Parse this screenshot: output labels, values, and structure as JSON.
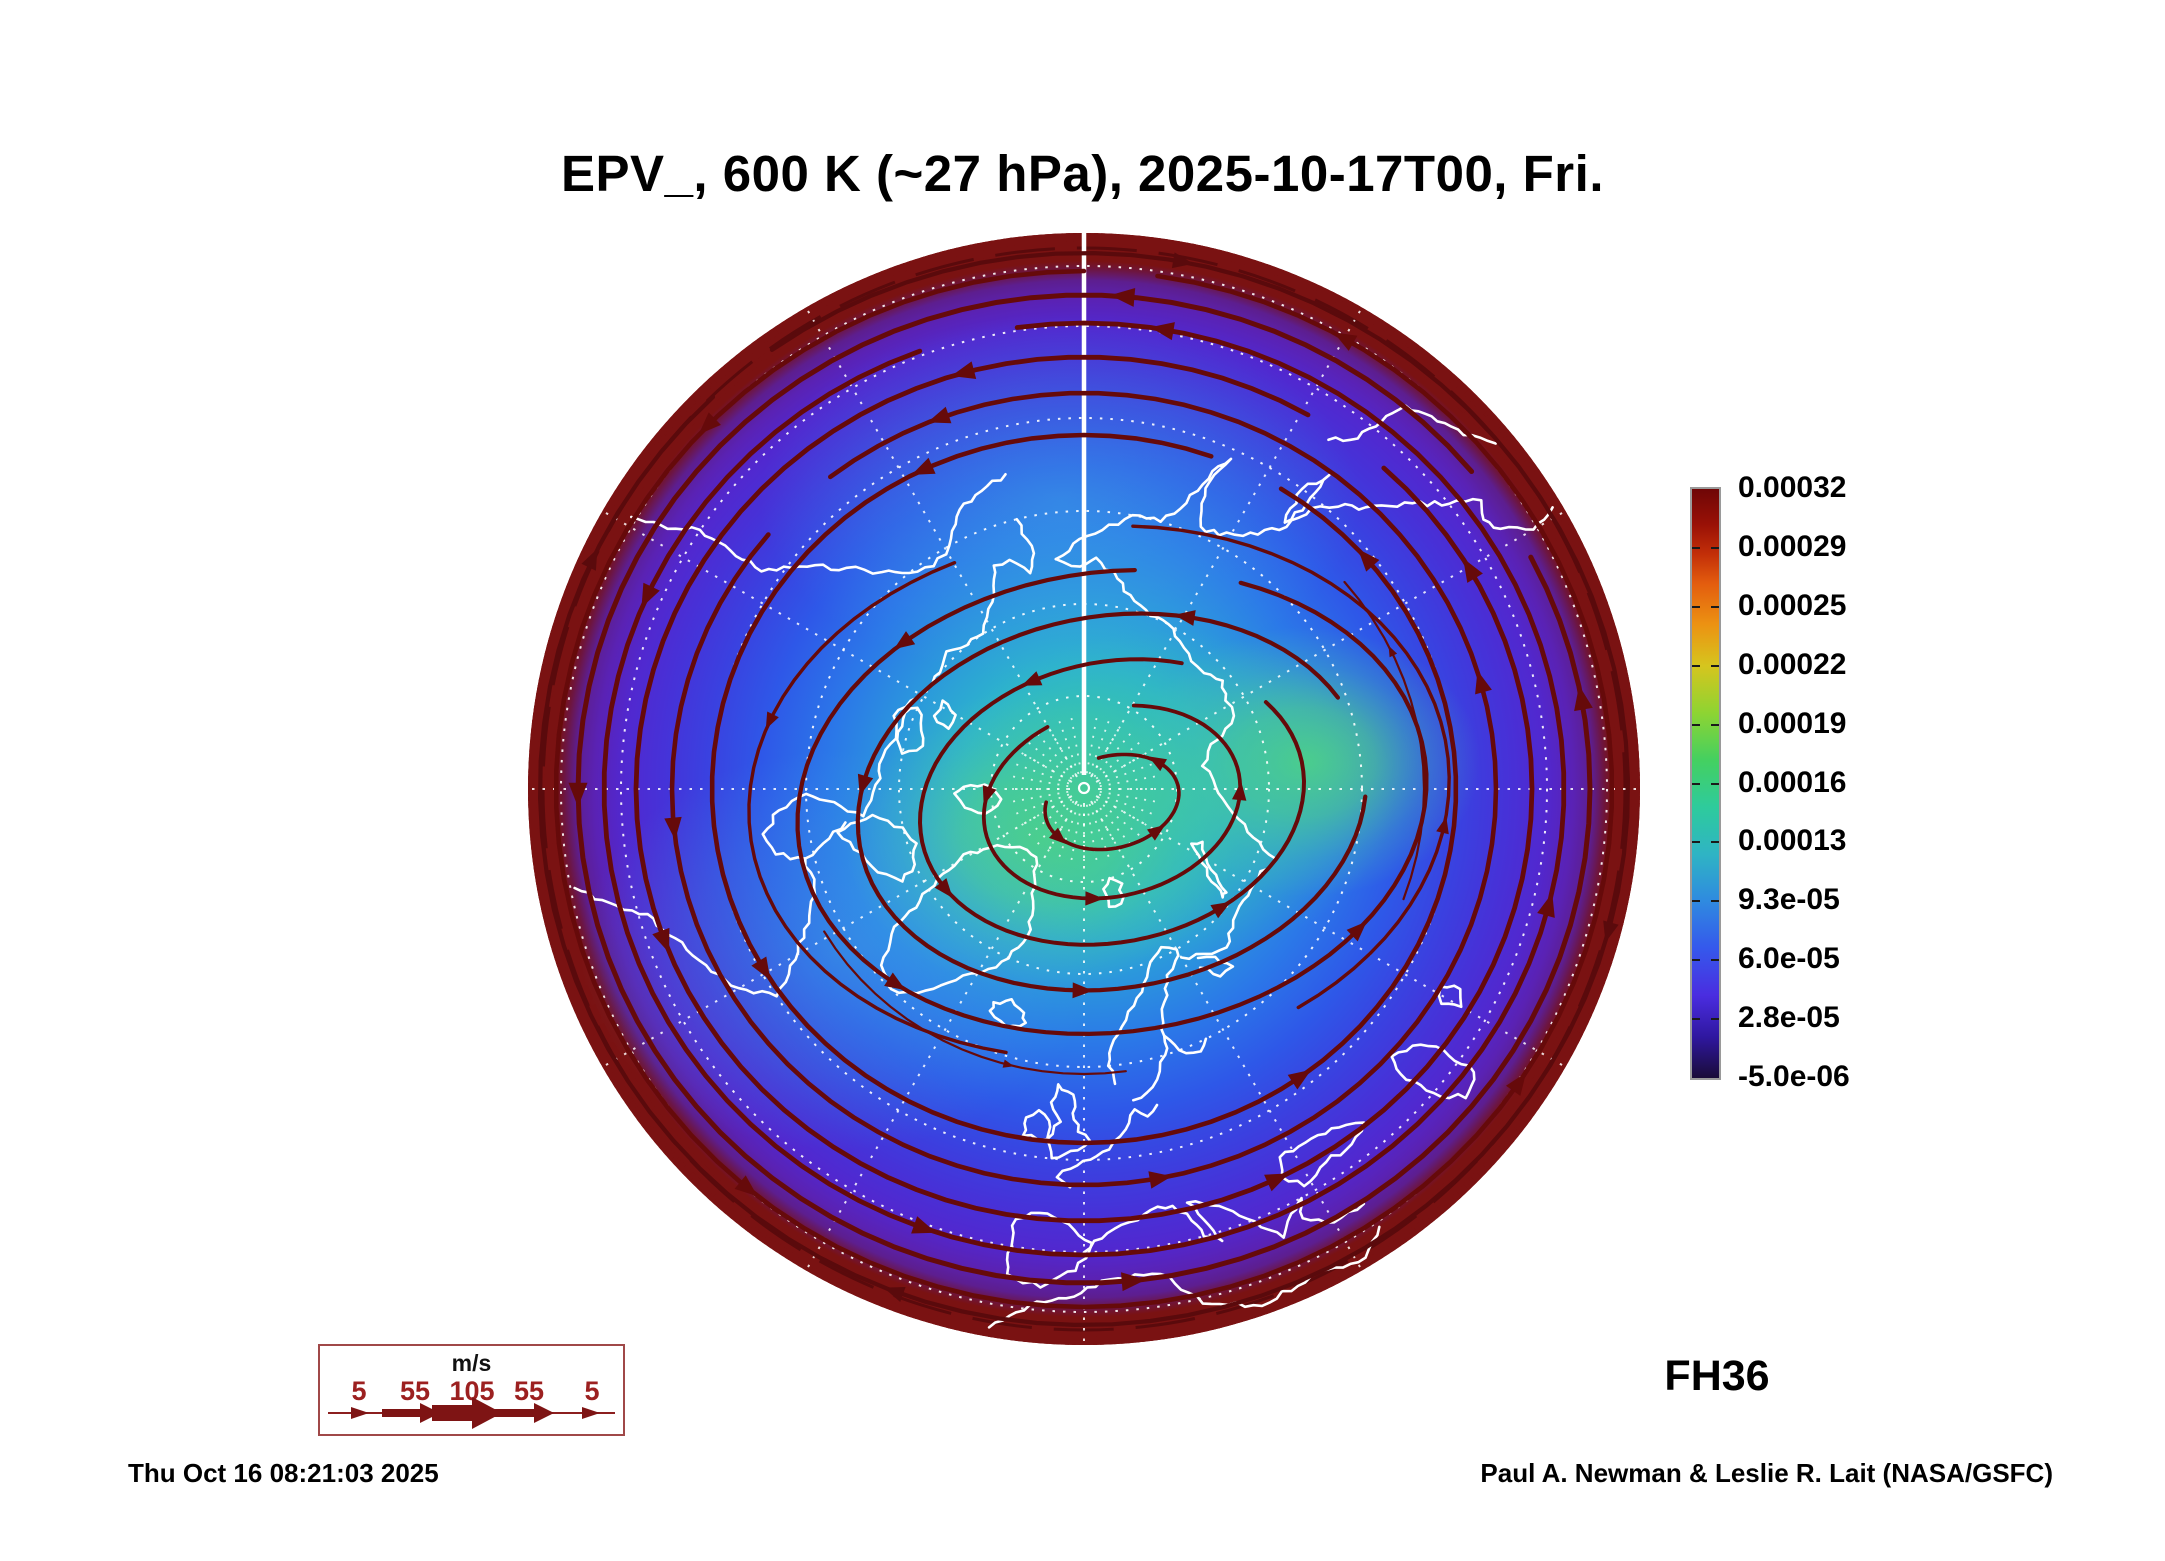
{
  "title": "EPV_, 600 K (~27 hPa), 2025-10-17T00, Fri.",
  "colorbar": {
    "ticks": [
      "0.00032",
      "0.00029",
      "0.00025",
      "0.00022",
      "0.00019",
      "0.00016",
      "0.00013",
      "9.3e-05",
      "6.0e-05",
      "2.8e-05",
      "-5.0e-06"
    ]
  },
  "wind_legend": {
    "unit": "m/s",
    "values": [
      "5",
      "55",
      "105",
      "55",
      "5"
    ]
  },
  "footer": {
    "forecast_hour": "FH36",
    "generated": "Thu Oct 16 08:21:03 2025",
    "credit": "Paul A. Newman & Leslie R. Lait (NASA/GSFC)"
  },
  "colors": {
    "edge_ring": "#7a1212",
    "streamline": "#660a0a",
    "coastline": "#ffffff",
    "graticule": "#ffffff",
    "wind_accent": "#9c2020",
    "center_green": "#4ed18e"
  },
  "chart_data": {
    "type": "heatmap",
    "title": "EPV_, 600 K (~27 hPa), 2025-10-17T00, Fri.",
    "field": "Ertel potential vorticity (EPV) on the 600 K isentropic surface (~27 hPa)",
    "projection": "north polar azimuthal; pole at center; 0 deg longitude at bottom; map edge near 30N",
    "valid_time": "2025-10-17T00",
    "forecast_hour": 36,
    "colorbar_ticks": [
      0.00032,
      0.00029,
      0.00025,
      0.00022,
      0.00019,
      0.00016,
      0.00013,
      9.3e-05,
      6e-05,
      2.8e-05,
      -5e-06
    ],
    "value_range": [
      -5e-06,
      0.00032
    ],
    "colorbar_orientation": "vertical, right of map, dark red (high) at top to dark navy (low) at bottom",
    "field_pattern": "lowest EPV (green, ~1.3e-04) pooled over the pole and elongated toward Canada and central Siberia; values rise outward through cyan (~1.0e-04), blue (~6e-05), indigo/purple (~3e-05 band rendering) to a dark-red ring (~3.2e-04) hugging the 30N map edge",
    "overlay": "dark-maroon wind streamlines with arrowheads circulating counterclockwise about a vortex centered near the pole (easterly-looking reversed arrows only at the outermost rim); white coastlines; white dashed latitude circles and meridians; solid white 180 deg meridian from pole to top edge",
    "wind_scale_ms": [
      5,
      55,
      105,
      55,
      5
    ]
  }
}
